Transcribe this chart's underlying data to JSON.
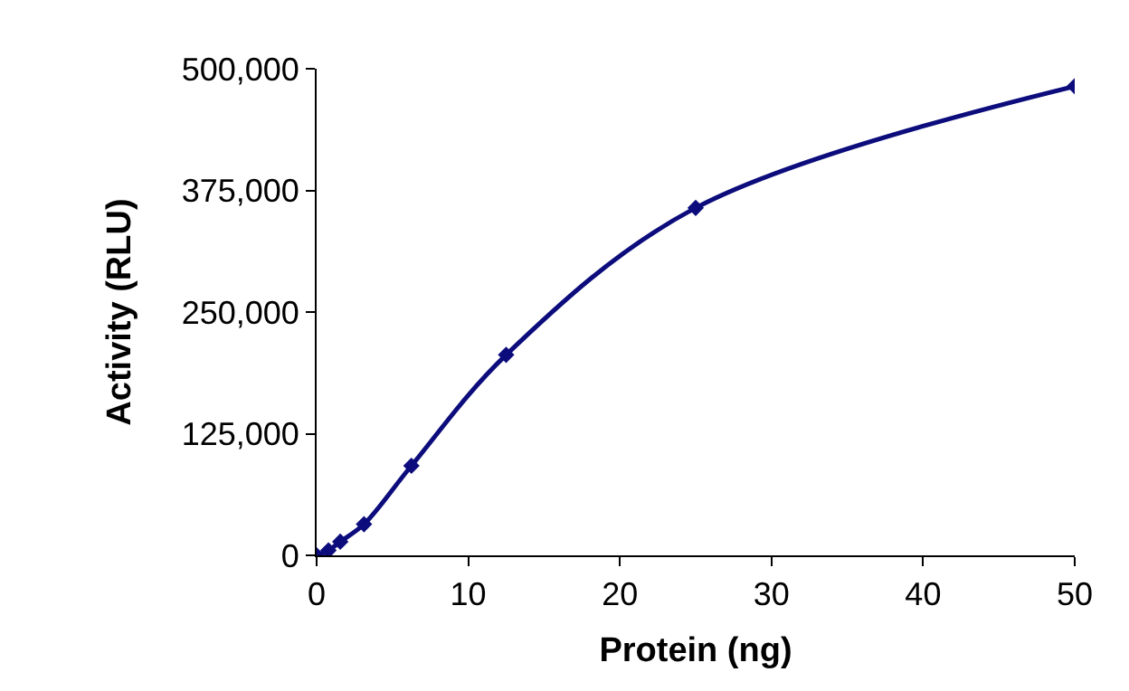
{
  "chart_data": {
    "type": "line",
    "xlabel": "Protein (ng)",
    "ylabel": "Activity (RLU)",
    "x": [
      0,
      0.78,
      1.56,
      3.125,
      6.25,
      12.5,
      25,
      50
    ],
    "series": [
      {
        "color": "#0c0c7c",
        "values": [
          0,
          5000,
          14000,
          32000,
          92000,
          206000,
          357000,
          482000
        ]
      }
    ],
    "xlim": [
      0,
      50
    ],
    "xticks": [
      0,
      10,
      20,
      30,
      40,
      50
    ],
    "ylim": [
      0,
      500000
    ],
    "yticks": [
      {
        "value": 0,
        "label": "0"
      },
      {
        "value": 125000,
        "label": "125,000"
      },
      {
        "value": 250000,
        "label": "250,000"
      },
      {
        "value": 375000,
        "label": "375,000"
      },
      {
        "value": 500000,
        "label": "500,000"
      }
    ],
    "grid": false,
    "legend": false,
    "marker": "diamond",
    "line_style": "solid"
  }
}
